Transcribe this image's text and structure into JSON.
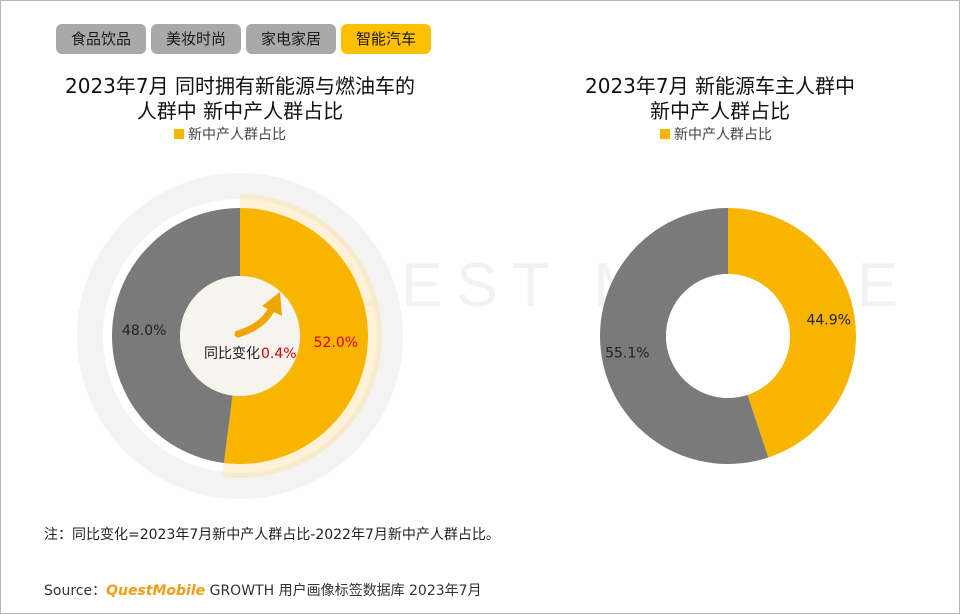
{
  "tabs": [
    {
      "label": "食品饮品",
      "active": false
    },
    {
      "label": "美妆时尚",
      "active": false
    },
    {
      "label": "家电家居",
      "active": false
    },
    {
      "label": "智能汽车",
      "active": true
    }
  ],
  "watermark": "QUEST MOBILE",
  "change_label": "同比变化",
  "chart_data": [
    {
      "type": "pie",
      "title_line1": "2023年7月 同时拥有新能源与燃油车的",
      "title_line2": "人群中 新中产人群占比",
      "legend": "新中产人群占比",
      "slices": [
        {
          "label": "新中产人群占比",
          "value": 52.0,
          "display": "52.0%",
          "color": "#f7b500"
        },
        {
          "label": "",
          "value": 48.0,
          "display": "48.0%",
          "color": "#7a7a7a"
        }
      ],
      "yoy_change": "0.4%"
    },
    {
      "type": "pie",
      "title_line1": "2023年7月 新能源车主人群中",
      "title_line2": "新中产人群占比",
      "legend": "新中产人群占比",
      "slices": [
        {
          "label": "新中产人群占比",
          "value": 44.9,
          "display": "44.9%",
          "color": "#f7b500"
        },
        {
          "label": "",
          "value": 55.1,
          "display": "55.1%",
          "color": "#7a7a7a"
        }
      ]
    }
  ],
  "note": "注：同比变化=2023年7月新中产人群占比-2022年7月新中产人群占比。",
  "source": {
    "prefix": "Source：",
    "brand": "QuestMobile",
    "rest": " GROWTH 用户画像标签数据库 2023年7月"
  },
  "colors": {
    "accent": "#ffc000",
    "gold": "#f7b500",
    "gray": "#7a7a7a",
    "red": "#e00000"
  }
}
